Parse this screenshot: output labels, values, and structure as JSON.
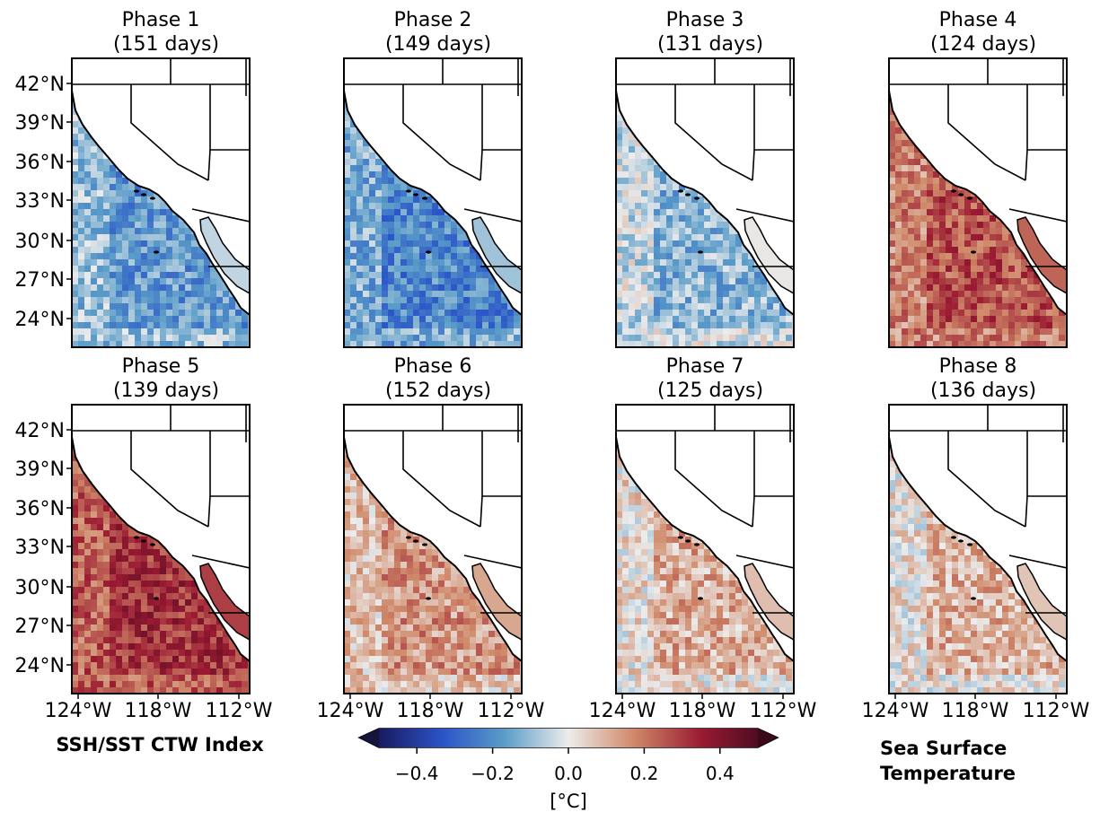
{
  "panels": [
    {
      "title": "Phase 1",
      "subtitle": "(151 days)",
      "mean_anomaly_c": -0.1
    },
    {
      "title": "Phase 2",
      "subtitle": "(149 days)",
      "mean_anomaly_c": -0.14
    },
    {
      "title": "Phase 3",
      "subtitle": "(131 days)",
      "mean_anomaly_c": -0.04
    },
    {
      "title": "Phase 4",
      "subtitle": "(124 days)",
      "mean_anomaly_c": 0.18
    },
    {
      "title": "Phase 5",
      "subtitle": "(139 days)",
      "mean_anomaly_c": 0.24
    },
    {
      "title": "Phase 6",
      "subtitle": "(152 days)",
      "mean_anomaly_c": 0.07
    },
    {
      "title": "Phase 7",
      "subtitle": "(125 days)",
      "mean_anomaly_c": 0.03
    },
    {
      "title": "Phase 8",
      "subtitle": "(136 days)",
      "mean_anomaly_c": 0.02
    }
  ],
  "axes": {
    "lat_ticks": [
      "42°N",
      "39°N",
      "36°N",
      "33°N",
      "30°N",
      "27°N",
      "24°N"
    ],
    "lon_ticks": [
      "124°W",
      "118°W",
      "112°W"
    ]
  },
  "left_label": "SSH/SST CTW Index",
  "right_label_line1": "Sea Surface",
  "right_label_line2": "Temperature",
  "colorbar": {
    "unit_label": "[°C]",
    "ticks": [
      "−0.4",
      "−0.2",
      "0.0",
      "0.2",
      "0.4"
    ],
    "range": [
      -0.5,
      0.5
    ],
    "extend": "both",
    "colormap": [
      "#14143c",
      "#2b48b8",
      "#4e92bf",
      "#e8e8e8",
      "#c97352",
      "#8a1630",
      "#3a0a18"
    ]
  }
}
